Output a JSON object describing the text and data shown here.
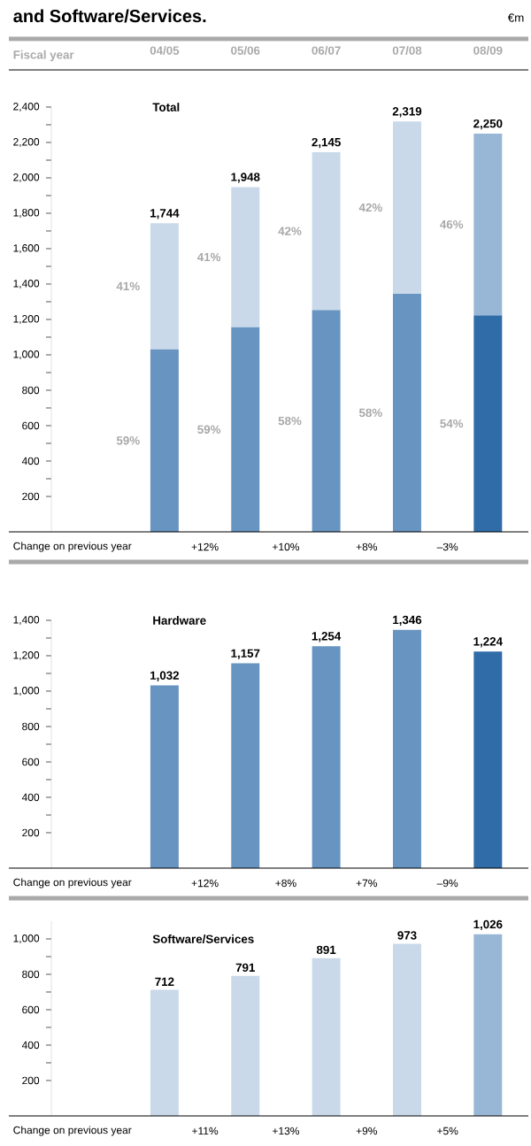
{
  "chart_data": [
    {
      "type": "bar",
      "title": "Total",
      "xlabel": "Fiscal year",
      "stacked": true,
      "categories": [
        "04/05",
        "05/06",
        "06/07",
        "07/08",
        "08/09"
      ],
      "series": [
        {
          "values": [
            1032,
            1157,
            1254,
            1346,
            1224
          ],
          "colors": [
            "#6794c1",
            "#6794c1",
            "#6794c1",
            "#6794c1",
            "#2f6ca8"
          ]
        },
        {
          "values": [
            712,
            791,
            891,
            973,
            1026
          ],
          "colors": [
            "#c9d9e9",
            "#c9d9e9",
            "#c9d9e9",
            "#c9d9e9",
            "#98b6d6"
          ]
        }
      ],
      "totals": [
        "1,744",
        "1,948",
        "2,145",
        "2,319",
        "2,250"
      ],
      "ylim": [
        0,
        2400
      ],
      "yticks": [
        200,
        400,
        600,
        800,
        {
          "value": 1000,
          "label": "1,000"
        },
        {
          "value": 1200,
          "label": "1,200"
        },
        {
          "value": 1400,
          "label": "1,400"
        },
        {
          "value": 1600,
          "label": "1,600"
        },
        {
          "value": 1800,
          "label": "1,800"
        },
        {
          "value": 2000,
          "label": "2,000"
        },
        {
          "value": 2200,
          "label": "2,200"
        },
        {
          "value": 2400,
          "label": "2,400"
        }
      ],
      "annotations": [
        "and Software/Services.",
        "€m",
        "Change on previous year",
        "+12%",
        "+10%",
        "+8%",
        "–3%",
        "59%",
        "59%",
        "58%",
        "58%",
        "54%",
        "41%",
        "41%",
        "42%",
        "42%",
        "46%"
      ]
    },
    {
      "type": "bar",
      "title": "Hardware",
      "tick_labels": "y",
      "categories": [
        null,
        null,
        null,
        null,
        null
      ],
      "values": [
        1032,
        1157,
        1254,
        1346,
        1224
      ],
      "colors": [
        "#6794c1",
        "#6794c1",
        "#6794c1",
        "#6794c1",
        "#2f6ca8"
      ],
      "value_labels": [
        "1,032",
        "1,157",
        "1,254",
        "1,346",
        "1,224"
      ],
      "ylim": [
        0,
        1400
      ],
      "yticks": [
        200,
        400,
        600,
        800,
        {
          "value": 1000,
          "label": "1,000"
        },
        {
          "value": 1200,
          "label": "1,200"
        },
        {
          "value": 1400,
          "label": "1,400"
        }
      ],
      "annotations": [
        "Change on previous year",
        "+12%",
        "+8%",
        "+7%",
        "–9%"
      ]
    },
    {
      "type": "bar",
      "title": "Software/Services",
      "tick_labels": "y",
      "categories": [
        null,
        null,
        null,
        null,
        null
      ],
      "values": [
        712,
        791,
        891,
        973,
        1026
      ],
      "colors": [
        "#c9d9e9",
        "#c9d9e9",
        "#c9d9e9",
        "#c9d9e9",
        "#98b6d6"
      ],
      "value_labels": [
        "712",
        "791",
        "891",
        "973",
        "1,026"
      ],
      "ylim": [
        0,
        1100
      ],
      "yticks": [
        200,
        400,
        600,
        800,
        {
          "value": 1000,
          "label": "1,000"
        }
      ],
      "annotations": [
        "Change on previous year",
        "+11%",
        "+13%",
        "+9%",
        "+5%"
      ]
    }
  ]
}
